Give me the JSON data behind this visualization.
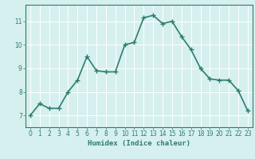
{
  "x": [
    0,
    1,
    2,
    3,
    4,
    5,
    6,
    7,
    8,
    9,
    10,
    11,
    12,
    13,
    14,
    15,
    16,
    17,
    18,
    19,
    20,
    21,
    22,
    23
  ],
  "y": [
    7.0,
    7.5,
    7.3,
    7.3,
    8.0,
    8.5,
    9.5,
    8.9,
    8.85,
    8.85,
    10.0,
    10.1,
    11.15,
    11.25,
    10.9,
    11.0,
    10.35,
    9.8,
    9.0,
    8.55,
    8.5,
    8.5,
    8.05,
    7.2
  ],
  "xlabel": "Humidex (Indice chaleur)",
  "ylim": [
    6.5,
    11.7
  ],
  "xlim": [
    -0.5,
    23.5
  ],
  "yticks": [
    7,
    8,
    9,
    10,
    11
  ],
  "xticks": [
    0,
    1,
    2,
    3,
    4,
    5,
    6,
    7,
    8,
    9,
    10,
    11,
    12,
    13,
    14,
    15,
    16,
    17,
    18,
    19,
    20,
    21,
    22,
    23
  ],
  "line_color": "#2e7d6e",
  "marker_color": "#2e7d6e",
  "bg_color": "#d6f0ef",
  "grid_color": "#ffffff",
  "axis_color": "#2e7d6e",
  "tick_label_color": "#2e7d6e",
  "xlabel_color": "#2e7d6e",
  "marker": "+",
  "linewidth": 1.2,
  "markersize": 4,
  "tick_fontsize": 5.5,
  "xlabel_fontsize": 6.5
}
